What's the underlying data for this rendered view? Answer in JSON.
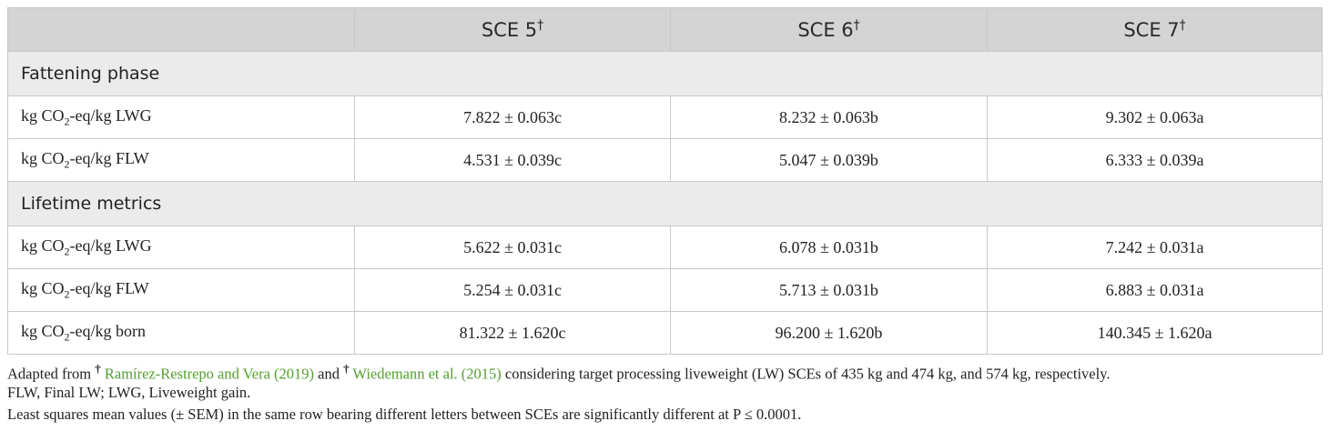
{
  "table": {
    "header": [
      {
        "text": "SCE 5",
        "mark": "†"
      },
      {
        "text": "SCE 6",
        "mark": "†"
      },
      {
        "text": "SCE 7",
        "mark": "†"
      }
    ],
    "sections": [
      {
        "title": "Fattening phase",
        "rows": [
          {
            "label": [
              "kg CO",
              "2",
              "-eq/kg LWG"
            ],
            "cells": [
              "7.822 ± 0.063c",
              "8.232 ± 0.063b",
              "9.302 ± 0.063a"
            ]
          },
          {
            "label": [
              "kg CO",
              "2",
              "-eq/kg FLW"
            ],
            "cells": [
              "4.531 ± 0.039c",
              "5.047 ± 0.039b",
              "6.333 ± 0.039a"
            ]
          }
        ]
      },
      {
        "title": "Lifetime metrics",
        "rows": [
          {
            "label": [
              "kg CO",
              "2",
              "-eq/kg LWG"
            ],
            "cells": [
              "5.622 ± 0.031c",
              "6.078 ± 0.031b",
              "7.242 ± 0.031a"
            ]
          },
          {
            "label": [
              "kg CO",
              "2",
              "-eq/kg FLW"
            ],
            "cells": [
              "5.254 ± 0.031c",
              "5.713 ± 0.031b",
              "6.883 ± 0.031a"
            ]
          },
          {
            "label": [
              "kg CO",
              "2",
              "-eq/kg born"
            ],
            "cells": [
              "81.322 ± 1.620c",
              "96.200 ± 1.620b",
              "140.345 ± 1.620a"
            ]
          }
        ]
      }
    ]
  },
  "footnotes": [
    [
      {
        "text": "Adapted from"
      },
      {
        "sup": "†"
      },
      {
        "link": "Ramírez-Restrepo and Vera (2019)"
      },
      {
        "text": "and"
      },
      {
        "sup": "†"
      },
      {
        "link": "Wiedemann et al. (2015)"
      },
      {
        "text": "considering target processing liveweight (LW) SCEs of 435 kg and 474 kg, and 574 kg, respectively."
      }
    ],
    [
      {
        "text": "FLW, Final LW; LWG, Liveweight gain."
      }
    ],
    [
      {
        "text": "Least squares mean values (± SEM) in the same row bearing different letters between SCEs are significantly different at P ≤ 0.0001."
      }
    ]
  ]
}
